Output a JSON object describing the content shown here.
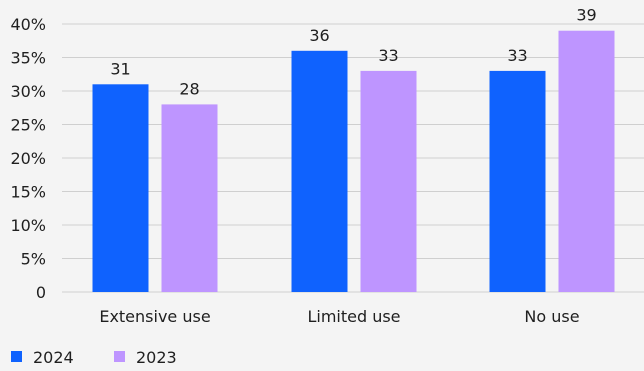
{
  "chart_data": {
    "type": "bar",
    "categories": [
      "Extensive use",
      "Limited use",
      "No use"
    ],
    "series": [
      {
        "name": "2024",
        "color": "#0f62fe",
        "values": [
          31,
          36,
          33
        ]
      },
      {
        "name": "2023",
        "color": "#be95ff",
        "values": [
          28,
          33,
          39
        ]
      }
    ],
    "ylim": [
      0,
      40
    ],
    "yticks": [
      0,
      5,
      10,
      15,
      20,
      25,
      30,
      35,
      40
    ],
    "ytick_labels": [
      "0",
      "5%",
      "10%",
      "15%",
      "20%",
      "25%",
      "30%",
      "35%",
      "40%"
    ],
    "grid": true,
    "legend_position": "bottom-left"
  }
}
